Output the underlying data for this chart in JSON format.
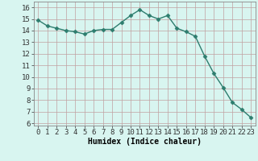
{
  "x": [
    0,
    1,
    2,
    3,
    4,
    5,
    6,
    7,
    8,
    9,
    10,
    11,
    12,
    13,
    14,
    15,
    16,
    17,
    18,
    19,
    20,
    21,
    22,
    23
  ],
  "y": [
    14.9,
    14.4,
    14.2,
    14.0,
    13.9,
    13.7,
    14.0,
    14.1,
    14.1,
    14.7,
    15.3,
    15.8,
    15.3,
    15.0,
    15.3,
    14.2,
    13.9,
    13.5,
    11.8,
    10.3,
    9.1,
    7.8,
    7.2,
    6.5
  ],
  "line_color": "#2d7d6e",
  "marker": "D",
  "markersize": 2.5,
  "linewidth": 1.0,
  "bg_color": "#d8f5f0",
  "grid_color": "#c0a0a0",
  "xlabel": "Humidex (Indice chaleur)",
  "xlabel_fontsize": 7,
  "ylabel_ticks": [
    6,
    7,
    8,
    9,
    10,
    11,
    12,
    13,
    14,
    15,
    16
  ],
  "xlim": [
    -0.5,
    23.5
  ],
  "ylim": [
    5.8,
    16.5
  ],
  "xticks": [
    0,
    1,
    2,
    3,
    4,
    5,
    6,
    7,
    8,
    9,
    10,
    11,
    12,
    13,
    14,
    15,
    16,
    17,
    18,
    19,
    20,
    21,
    22,
    23
  ],
  "tick_fontsize": 6.5
}
